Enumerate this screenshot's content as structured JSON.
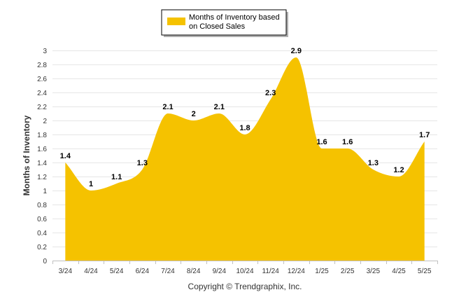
{
  "chart_data": {
    "type": "area",
    "categories": [
      "3/24",
      "4/24",
      "5/24",
      "6/24",
      "7/24",
      "8/24",
      "9/24",
      "10/24",
      "11/24",
      "12/24",
      "1/25",
      "2/25",
      "3/25",
      "4/25",
      "5/25"
    ],
    "series": [
      {
        "name": "Months of Inventory based on Closed Sales",
        "values": [
          1.4,
          1,
          1.1,
          1.3,
          2.1,
          2,
          2.1,
          1.8,
          2.3,
          2.9,
          1.6,
          1.6,
          1.3,
          1.2,
          1.7
        ],
        "data_labels": [
          "1.4",
          "1",
          "1.1",
          "1.3",
          "2.1",
          "2",
          "2.1",
          "1.8",
          "2.3",
          "2.9",
          "1.6",
          "1.6",
          "1.3",
          "1.2",
          "1.7"
        ],
        "color": "#F5C200"
      }
    ],
    "ylabel": "Months of Inventory",
    "xlabel": "",
    "ylim": [
      0,
      3
    ],
    "yticks": [
      "0",
      "0.2",
      "0.4",
      "0.6",
      "0.8",
      "1",
      "1.2",
      "1.4",
      "1.6",
      "1.8",
      "2",
      "2.2",
      "2.4",
      "2.6",
      "2.8",
      "3"
    ],
    "grid": true,
    "legend": "top-center",
    "legend_lines": [
      "Months of Inventory based",
      "on Closed Sales"
    ]
  },
  "footer": "Copyright © Trendgraphix, Inc."
}
